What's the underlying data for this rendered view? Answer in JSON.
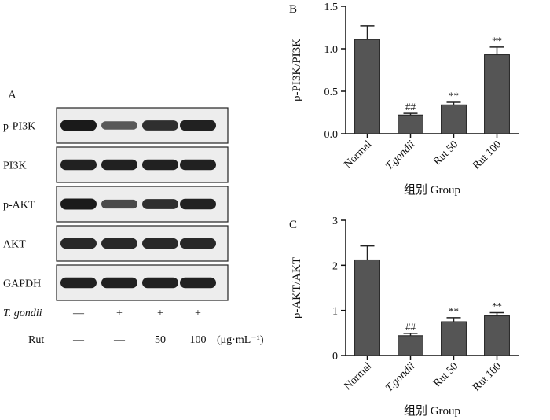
{
  "blot": {
    "panel_letter": "A",
    "rows": [
      {
        "label": "p-PI3K",
        "intensity": [
          1.0,
          0.55,
          0.85,
          0.95
        ]
      },
      {
        "label": "PI3K",
        "intensity": [
          0.95,
          0.95,
          0.95,
          0.95
        ]
      },
      {
        "label": "p-AKT",
        "intensity": [
          1.0,
          0.65,
          0.85,
          0.95
        ]
      },
      {
        "label": "AKT",
        "intensity": [
          0.9,
          0.9,
          0.9,
          0.9
        ]
      },
      {
        "label": "GAPDH",
        "intensity": [
          0.95,
          0.95,
          0.95,
          0.95
        ]
      }
    ],
    "conditions": [
      {
        "label": "T. gondii",
        "values": [
          "—",
          "+",
          "+",
          "+"
        ]
      },
      {
        "label": "Rut",
        "values": [
          "—",
          "—",
          "50",
          "100"
        ],
        "unit": "(μg·mL⁻¹)"
      }
    ],
    "colors": {
      "band": "#1a1a1a",
      "membrane": "#ededed"
    }
  },
  "chart_data": [
    {
      "panel_letter": "B",
      "type": "bar",
      "categories": [
        "Normal",
        "T.gondii",
        "Rut 50",
        "Rut 100"
      ],
      "italic_categories": [
        "T.gondii"
      ],
      "values": [
        1.11,
        0.22,
        0.34,
        0.93
      ],
      "errors": [
        0.16,
        0.02,
        0.03,
        0.09
      ],
      "annotations": [
        "",
        "##",
        "**",
        "**"
      ],
      "ylabel": "p-PI3K/PI3K",
      "xlabel": "组别 Group",
      "ylim": [
        0,
        1.5
      ],
      "yticks": [
        "0.0",
        "0.5",
        "1.0",
        "1.5"
      ],
      "bar_color": "#555555"
    },
    {
      "panel_letter": "C",
      "type": "bar",
      "categories": [
        "Normal",
        "T.gondii",
        "Rut 50",
        "Rut 100"
      ],
      "italic_categories": [
        "T.gondii"
      ],
      "values": [
        2.12,
        0.44,
        0.75,
        0.88
      ],
      "errors": [
        0.31,
        0.05,
        0.09,
        0.07
      ],
      "annotations": [
        "",
        "##",
        "**",
        "**"
      ],
      "ylabel": "p-AKT/AKT",
      "xlabel": "组别 Group",
      "ylim": [
        0,
        3
      ],
      "yticks": [
        "0",
        "1",
        "2",
        "3"
      ],
      "bar_color": "#555555"
    }
  ]
}
